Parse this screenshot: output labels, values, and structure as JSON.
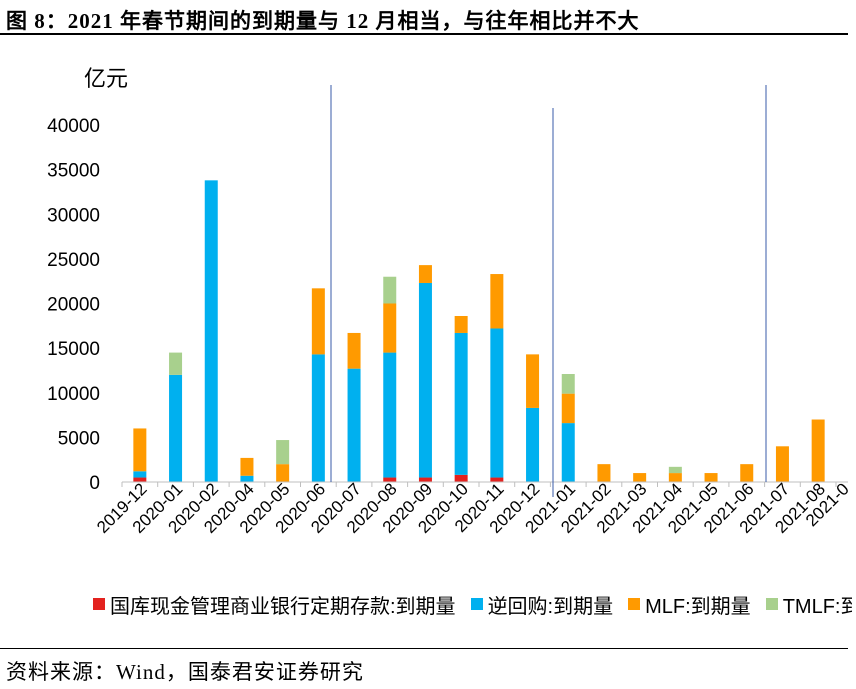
{
  "title": "图 8：2021 年春节期间的到期量与 12 月相当，与往年相比并不大",
  "source": "资料来源：Wind，国泰君安证券研究",
  "chart_data": {
    "type": "bar",
    "stacked": true,
    "ylabel": "亿元",
    "ylim": [
      0,
      40000
    ],
    "yticks": [
      0,
      5000,
      10000,
      15000,
      20000,
      25000,
      30000,
      35000,
      40000
    ],
    "grid": false,
    "legend": "bottom",
    "categories": [
      "2019-12",
      "2020-01",
      "2020-02",
      "2020-04",
      "2020-05",
      "2020-06",
      "2020-07",
      "2020-08",
      "2020-09",
      "2020-10",
      "2020-11",
      "2020-12",
      "2021-01",
      "2021-02",
      "2021-03",
      "2021-04",
      "2021-05",
      "2021-06",
      "2021-07",
      "2021-08",
      "2021-0"
    ],
    "series": [
      {
        "name": "国库现金管理商业银行定期存款:到期量",
        "color": "#E3221F",
        "values": [
          500,
          0,
          0,
          0,
          0,
          0,
          0,
          500,
          500,
          800,
          500,
          0,
          0,
          0,
          0,
          0,
          0,
          0,
          0,
          0,
          null
        ]
      },
      {
        "name": "逆回购:到期量",
        "color": "#00B0EF",
        "values": [
          700,
          12000,
          33800,
          700,
          0,
          14300,
          12700,
          14000,
          21800,
          15900,
          16700,
          8300,
          6600,
          0,
          0,
          0,
          0,
          0,
          0,
          0,
          null
        ]
      },
      {
        "name": "MLF:到期量",
        "color": "#FF9A00",
        "values": [
          4800,
          0,
          0,
          2000,
          2000,
          7400,
          4000,
          5500,
          2000,
          1900,
          6100,
          6000,
          3300,
          2000,
          1000,
          1000,
          1000,
          2000,
          4000,
          7000,
          null
        ]
      },
      {
        "name": "TMLF:到",
        "color": "#A8D08D",
        "values": [
          0,
          2500,
          0,
          0,
          2700,
          0,
          0,
          3000,
          0,
          0,
          0,
          0,
          2200,
          0,
          0,
          700,
          0,
          0,
          0,
          0,
          null
        ]
      }
    ]
  }
}
